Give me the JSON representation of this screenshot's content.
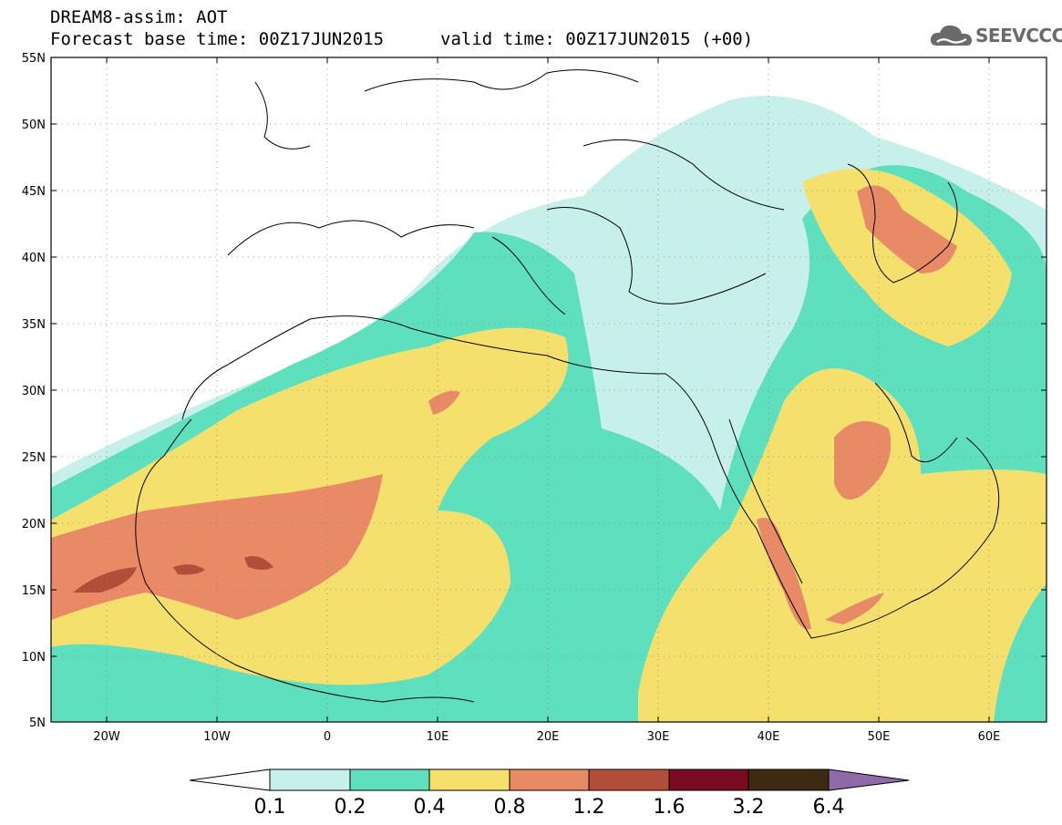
{
  "header": {
    "line1": "DREAM8-assim: AOT",
    "line2": "Forecast base time: 00Z17JUN2015",
    "line3": "valid time: 00Z17JUN2015 (+00)"
  },
  "logo": {
    "text": "SEEVCCC",
    "icon": "cloud-icon",
    "color": "#6a6a6a"
  },
  "map": {
    "lon_range": [
      -25,
      65
    ],
    "lat_range": [
      5,
      55
    ],
    "lat_labels": [
      "55N",
      "50N",
      "45N",
      "40N",
      "35N",
      "30N",
      "25N",
      "20N",
      "15N",
      "10N",
      "5N"
    ],
    "lon_labels": [
      "20W",
      "10W",
      "0",
      "10E",
      "20E",
      "30E",
      "40E",
      "50E",
      "60E"
    ],
    "grid": "dotted"
  },
  "colorbar": {
    "labels": [
      "0.1",
      "0.2",
      "0.4",
      "0.8",
      "1.2",
      "1.6",
      "3.2",
      "6.4"
    ],
    "colors": [
      "#ffffff",
      "#c8f0ea",
      "#5ee0bf",
      "#f5e06e",
      "#e88a66",
      "#b04e3a",
      "#7a0a22",
      "#3e2a12",
      "#8f6aa8"
    ]
  },
  "chart_data": {
    "type": "heatmap",
    "variable": "AOT",
    "levels": [
      0.1,
      0.2,
      0.4,
      0.8,
      1.2,
      1.6,
      3.2,
      6.4
    ],
    "xlim": [
      -25,
      65
    ],
    "ylim": [
      5,
      55
    ]
  }
}
